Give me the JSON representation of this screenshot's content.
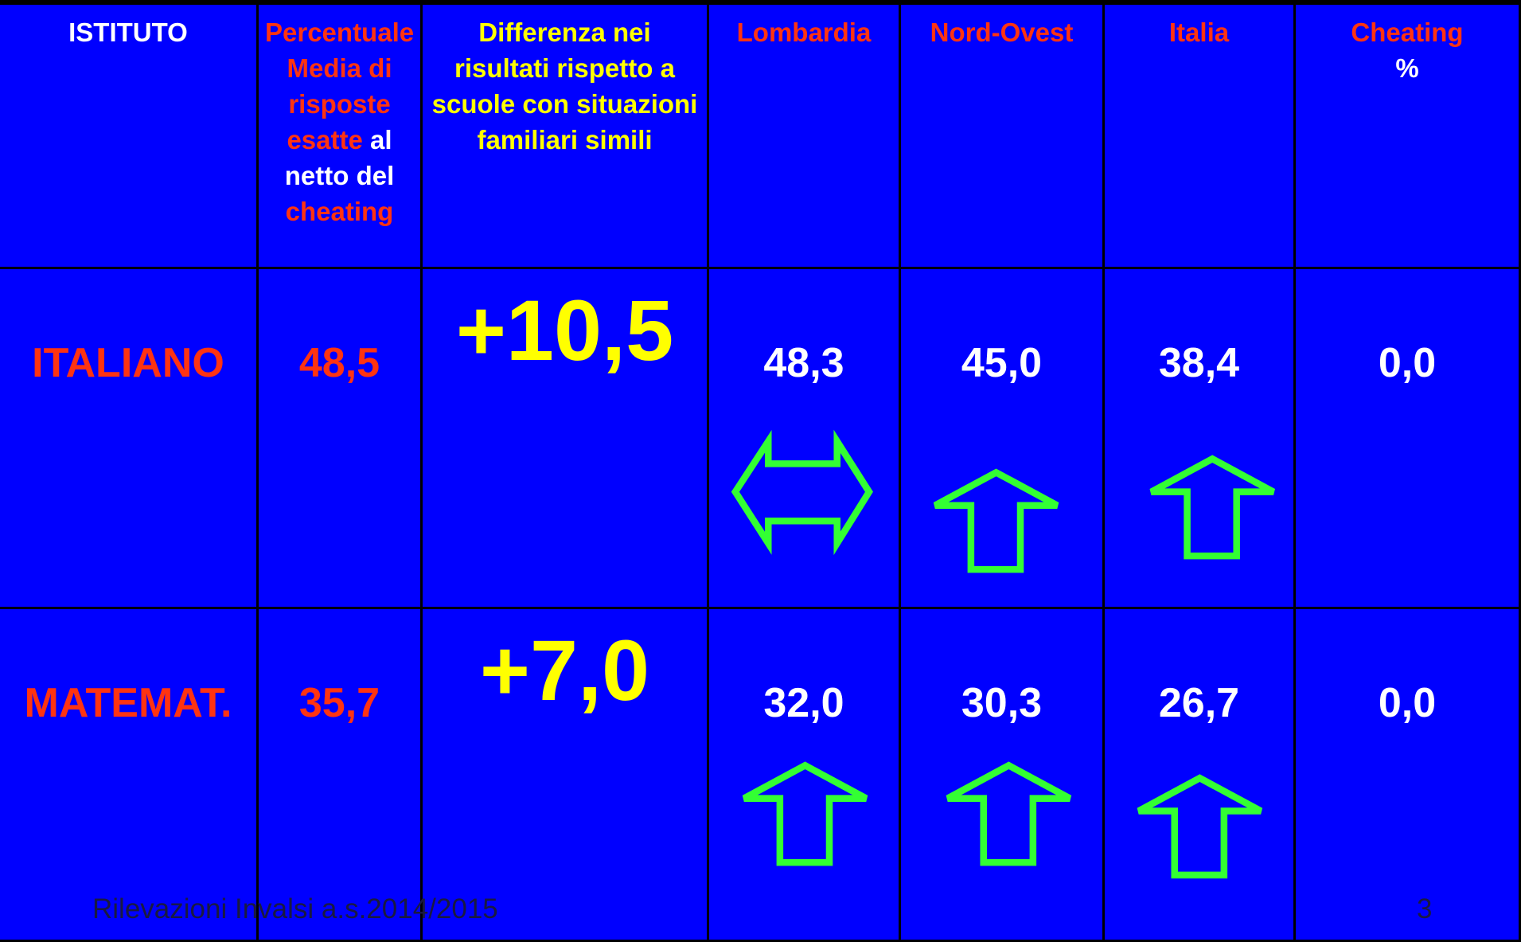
{
  "header": [
    "ISTITUTO",
    [
      "Percentuale Media di risposte esatte",
      "al",
      "netto del",
      "cheating"
    ],
    "Differenza nei risultati rispetto a scuole con situazioni familiari simili",
    "Lombardia",
    "Nord-Ovest",
    "Italia",
    [
      "Cheating",
      "%"
    ]
  ],
  "rows": [
    [
      "ITALIANO",
      "48,5",
      "+10,5",
      "48,3",
      "45,0",
      "38,4",
      "0,0"
    ],
    [
      "MATEMAT.",
      "35,7",
      "+7,0",
      "32,0",
      "30,3",
      "26,7",
      "0,0"
    ]
  ],
  "footer": {
    "source": "Rilevazioni Invalsi a.s.2014/2015",
    "page": "3"
  }
}
